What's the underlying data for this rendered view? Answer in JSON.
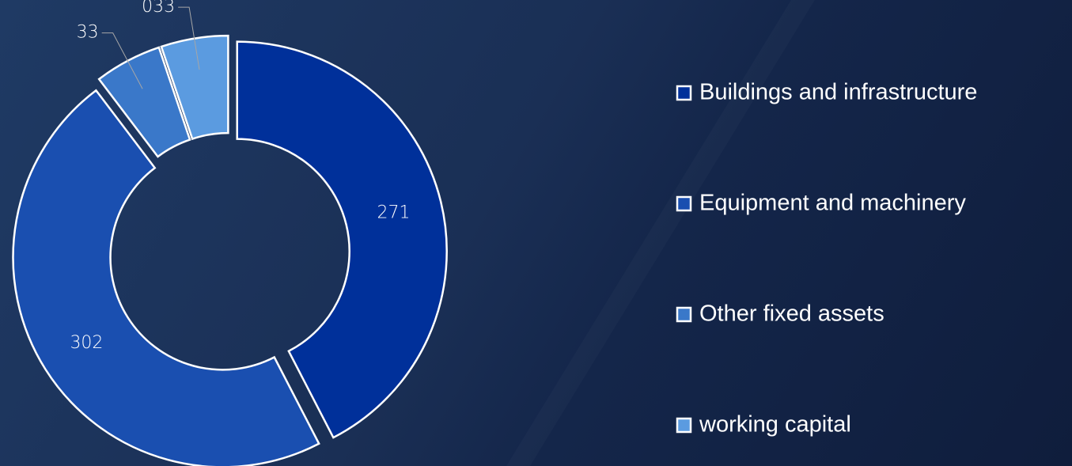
{
  "chart_data": {
    "type": "donut",
    "categories": [
      "Buildings and infrastructure",
      "Equipment and machinery",
      "Other fixed assets",
      "working capital"
    ],
    "values": [
      271,
      302,
      33,
      33
    ],
    "value_labels": [
      "271",
      "302",
      "33",
      "033"
    ],
    "colors": [
      "#00309a",
      "#1a4fb0",
      "#3a78c9",
      "#5b9be0"
    ],
    "legend": "right"
  }
}
